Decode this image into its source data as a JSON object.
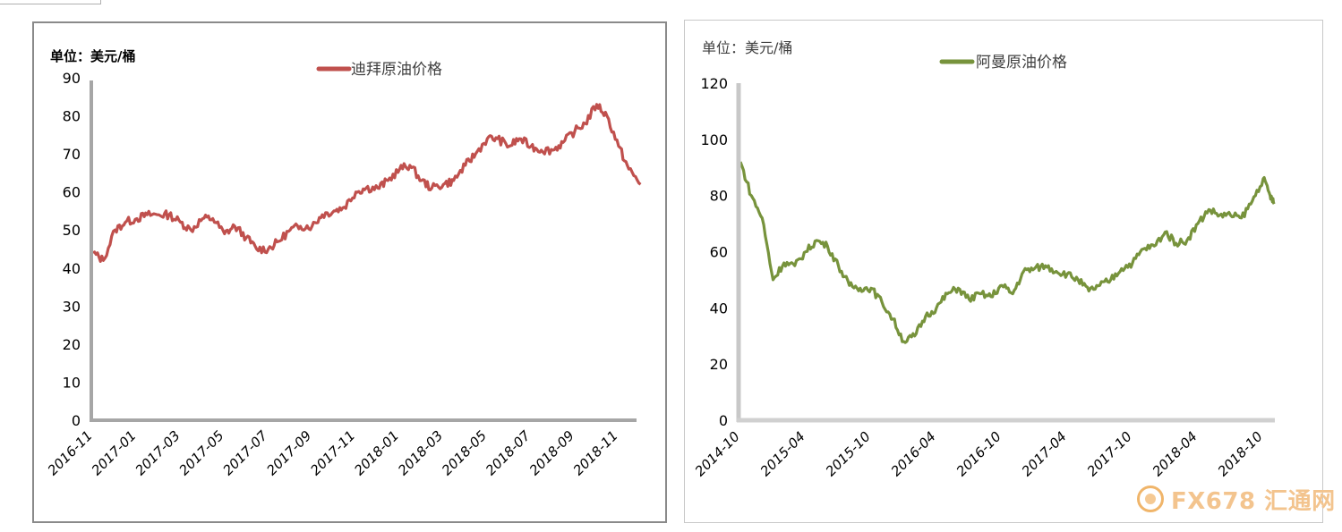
{
  "chart_data": [
    {
      "type": "line",
      "ylabel": "单位：美元/桶",
      "legend": "top-center",
      "grid": false,
      "ylim": [
        0,
        90
      ],
      "yticks": [
        "0",
        "10",
        "20",
        "30",
        "40",
        "50",
        "60",
        "70",
        "80",
        "90"
      ],
      "xtick_labels": [
        "2016-11",
        "2017-01",
        "2017-03",
        "2017-05",
        "2017-07",
        "2017-09",
        "2017-11",
        "2018-01",
        "2018-03",
        "2018-05",
        "2018-07",
        "2018-09",
        "2018-11"
      ],
      "series": [
        {
          "name": "迪拜原油价格",
          "color": "#c0504d",
          "points": [
            [
              "2016-11",
              44
            ],
            [
              "2016-11-15",
              42
            ],
            [
              "2016-12",
              50
            ],
            [
              "2016-12-15",
              52
            ],
            [
              "2017-01",
              53
            ],
            [
              "2017-01-15",
              54
            ],
            [
              "2017-02",
              54
            ],
            [
              "2017-02-15",
              54
            ],
            [
              "2017-03",
              52
            ],
            [
              "2017-03-15",
              50
            ],
            [
              "2017-04",
              53
            ],
            [
              "2017-04-15",
              53
            ],
            [
              "2017-05",
              49
            ],
            [
              "2017-05-15",
              51
            ],
            [
              "2017-06",
              48
            ],
            [
              "2017-06-15",
              45
            ],
            [
              "2017-07",
              45
            ],
            [
              "2017-07-15",
              47
            ],
            [
              "2017-08",
              50
            ],
            [
              "2017-08-15",
              51
            ],
            [
              "2017-09",
              51
            ],
            [
              "2017-09-15",
              54
            ],
            [
              "2017-10",
              55
            ],
            [
              "2017-10-15",
              56
            ],
            [
              "2017-11",
              60
            ],
            [
              "2017-11-15",
              61
            ],
            [
              "2017-12",
              61
            ],
            [
              "2017-12-15",
              63
            ],
            [
              "2018-01",
              66
            ],
            [
              "2018-01-15",
              67
            ],
            [
              "2018-02",
              63
            ],
            [
              "2018-02-15",
              61
            ],
            [
              "2018-03",
              62
            ],
            [
              "2018-03-15",
              63
            ],
            [
              "2018-04",
              67
            ],
            [
              "2018-04-15",
              70
            ],
            [
              "2018-05",
              74
            ],
            [
              "2018-05-15",
              74
            ],
            [
              "2018-06",
              72
            ],
            [
              "2018-06-15",
              74
            ],
            [
              "2018-07",
              72
            ],
            [
              "2018-07-15",
              71
            ],
            [
              "2018-08",
              71
            ],
            [
              "2018-08-15",
              73
            ],
            [
              "2018-09",
              76
            ],
            [
              "2018-09-15",
              78
            ],
            [
              "2018-10",
              83
            ],
            [
              "2018-10-15",
              80
            ],
            [
              "2018-11",
              72
            ],
            [
              "2018-11-15",
              66
            ],
            [
              "2018-12",
              62
            ]
          ]
        }
      ]
    },
    {
      "type": "line",
      "ylabel": "单位：美元/桶",
      "legend": "top-center",
      "grid": false,
      "ylim": [
        0,
        120
      ],
      "yticks": [
        "0",
        "20",
        "40",
        "60",
        "80",
        "100",
        "120"
      ],
      "xtick_labels": [
        "2014-10",
        "2015-04",
        "2015-10",
        "2016-04",
        "2016-10",
        "2017-04",
        "2017-10",
        "2018-04",
        "2018-10"
      ],
      "series": [
        {
          "name": "阿曼原油价格",
          "color": "#77933c",
          "points": [
            [
              "2014-10",
              92
            ],
            [
              "2014-11",
              80
            ],
            [
              "2014-12",
              72
            ],
            [
              "2015-01",
              50
            ],
            [
              "2015-02",
              56
            ],
            [
              "2015-03",
              55
            ],
            [
              "2015-04",
              60
            ],
            [
              "2015-05",
              64
            ],
            [
              "2015-06",
              62
            ],
            [
              "2015-07",
              55
            ],
            [
              "2015-08",
              48
            ],
            [
              "2015-09",
              47
            ],
            [
              "2015-10",
              47
            ],
            [
              "2015-11",
              42
            ],
            [
              "2015-12",
              36
            ],
            [
              "2016-01",
              28
            ],
            [
              "2016-02",
              30
            ],
            [
              "2016-03",
              37
            ],
            [
              "2016-04",
              40
            ],
            [
              "2016-05",
              45
            ],
            [
              "2016-06",
              47
            ],
            [
              "2016-07",
              43
            ],
            [
              "2016-08",
              45
            ],
            [
              "2016-09",
              44
            ],
            [
              "2016-10",
              48
            ],
            [
              "2016-11",
              45
            ],
            [
              "2016-12",
              53
            ],
            [
              "2017-01",
              54
            ],
            [
              "2017-02",
              55
            ],
            [
              "2017-03",
              53
            ],
            [
              "2017-04",
              52
            ],
            [
              "2017-05",
              50
            ],
            [
              "2017-06",
              46
            ],
            [
              "2017-07",
              48
            ],
            [
              "2017-08",
              50
            ],
            [
              "2017-09",
              54
            ],
            [
              "2017-10",
              56
            ],
            [
              "2017-11",
              61
            ],
            [
              "2017-12",
              62
            ],
            [
              "2018-01",
              67
            ],
            [
              "2018-02",
              63
            ],
            [
              "2018-03",
              64
            ],
            [
              "2018-04",
              70
            ],
            [
              "2018-05",
              75
            ],
            [
              "2018-06",
              73
            ],
            [
              "2018-07",
              73
            ],
            [
              "2018-08",
              72
            ],
            [
              "2018-09",
              78
            ],
            [
              "2018-10",
              86
            ],
            [
              "2018-10-20",
              80
            ],
            [
              "2018-11",
              77
            ]
          ]
        }
      ]
    }
  ],
  "watermark": {
    "text": "FX678 汇通网",
    "color": "#f3c48e"
  }
}
